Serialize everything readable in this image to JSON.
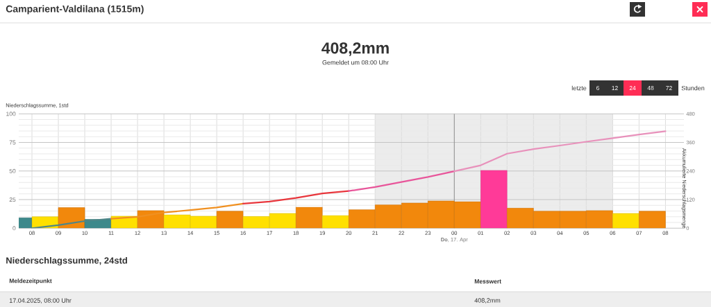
{
  "chart_data": {
    "type": "bar",
    "title": "Camparient-Valdilana (1515m)",
    "subtitle": "408,2mm",
    "ylabel": "Niederschlagssumme, 1std",
    "y2label": "Akkumulierte Niederschlagsmenge",
    "x": [
      7.5,
      8.5,
      9.5,
      10.5,
      11.5,
      12.5,
      13.5,
      14.5,
      15.5,
      16.5,
      17.5,
      18.5,
      19.5,
      20.5,
      21.5,
      22.5,
      23.5,
      24.5,
      25.5,
      26.5,
      27.5,
      28.5,
      29.5,
      30.5,
      31.5
    ],
    "xlim": [
      7.5,
      32.7
    ],
    "xticks": [
      {
        "value": 8,
        "label": "08"
      },
      {
        "value": 9,
        "label": "09"
      },
      {
        "value": 10,
        "label": "10"
      },
      {
        "value": 11,
        "label": "11"
      },
      {
        "value": 12,
        "label": "12"
      },
      {
        "value": 13,
        "label": "13"
      },
      {
        "value": 14,
        "label": "14"
      },
      {
        "value": 15,
        "label": "15"
      },
      {
        "value": 16,
        "label": "16"
      },
      {
        "value": 17,
        "label": "17"
      },
      {
        "value": 18,
        "label": "18"
      },
      {
        "value": 19,
        "label": "19"
      },
      {
        "value": 20,
        "label": "20"
      },
      {
        "value": 21,
        "label": "21"
      },
      {
        "value": 22,
        "label": "22"
      },
      {
        "value": 23,
        "label": "23"
      },
      {
        "value": 24,
        "label": "00"
      },
      {
        "value": 25,
        "label": "01"
      },
      {
        "value": 26,
        "label": "02"
      },
      {
        "value": 27,
        "label": "03"
      },
      {
        "value": 28,
        "label": "04"
      },
      {
        "value": 29,
        "label": "05"
      },
      {
        "value": 30,
        "label": "06"
      },
      {
        "value": 31,
        "label": "07"
      },
      {
        "value": 32,
        "label": "08"
      }
    ],
    "ylim": [
      0,
      100
    ],
    "yticks": [
      0,
      25,
      50,
      75,
      100
    ],
    "y2lim": [
      0,
      480
    ],
    "y2ticks": [
      0,
      120,
      240,
      360,
      480
    ],
    "series": [
      {
        "values": [
          9.1,
          10,
          18,
          7.7,
          10.5,
          15.4,
          11.7,
          10.5,
          14.9,
          10.3,
          12.9,
          18.4,
          11.1,
          16.2,
          20.4,
          22,
          23.8,
          23.2,
          50.5,
          17.6,
          14.9,
          14.9,
          15.4,
          12.9,
          14.9
        ],
        "colors": [
          "#3d898b",
          "#ffe000",
          "#f2880c",
          "#3d898b",
          "#ffe000",
          "#f2880c",
          "#ffe000",
          "#ffe000",
          "#f2880c",
          "#ffe000",
          "#ffe000",
          "#f2880c",
          "#ffe000",
          "#f2880c",
          "#f2880c",
          "#f2880c",
          "#f2880c",
          "#f2880c",
          "#ff3a98",
          "#f2880c",
          "#f2880c",
          "#f2880c",
          "#f2880c",
          "#ffe000",
          "#f2880c"
        ]
      },
      {
        "type": "line",
        "axis": "y2",
        "color": "#4e8688",
        "x": [
          8,
          9,
          10,
          11
        ],
        "values": [
          0,
          13,
          30,
          40
        ]
      },
      {
        "type": "line",
        "axis": "y2",
        "color": "#f09020",
        "x": [
          11,
          12,
          13,
          14,
          15,
          16
        ],
        "values": [
          40,
          48,
          66,
          76,
          87,
          103
        ]
      },
      {
        "type": "line",
        "axis": "y2",
        "color": "#e8363c",
        "x": [
          16,
          17,
          18,
          19,
          20
        ],
        "values": [
          103,
          112,
          127,
          146,
          156
        ]
      },
      {
        "type": "line",
        "axis": "y2",
        "color": "#e8559a",
        "x": [
          20,
          21,
          22,
          23,
          24
        ],
        "values": [
          156,
          173,
          194,
          215,
          239
        ]
      },
      {
        "type": "line",
        "axis": "y2",
        "color": "#e891bb",
        "x": [
          24,
          25,
          26,
          27,
          28,
          29,
          30,
          31,
          32
        ],
        "values": [
          239,
          264,
          313,
          332,
          347,
          363,
          378,
          393,
          407
        ]
      }
    ],
    "bands": [
      {
        "axis": "x",
        "from": 21,
        "to": 30,
        "color": "#ececec"
      }
    ],
    "ref_lines": [
      {
        "axis": "x",
        "value": 24,
        "label": "**Do**, 17. Apr",
        "color": "#8c8c8c"
      }
    ],
    "grid": true,
    "annotations": [
      "Gemeldet um 08:00 Uhr",
      "letzte",
      "6",
      "12",
      "24",
      "48",
      "72",
      "Stunden",
      "Niederschlagssumme, 24std",
      "Meldezeitpunkt",
      "Messwert",
      "17.04.2025, 08:00 Uhr",
      "408,2mm"
    ]
  }
}
